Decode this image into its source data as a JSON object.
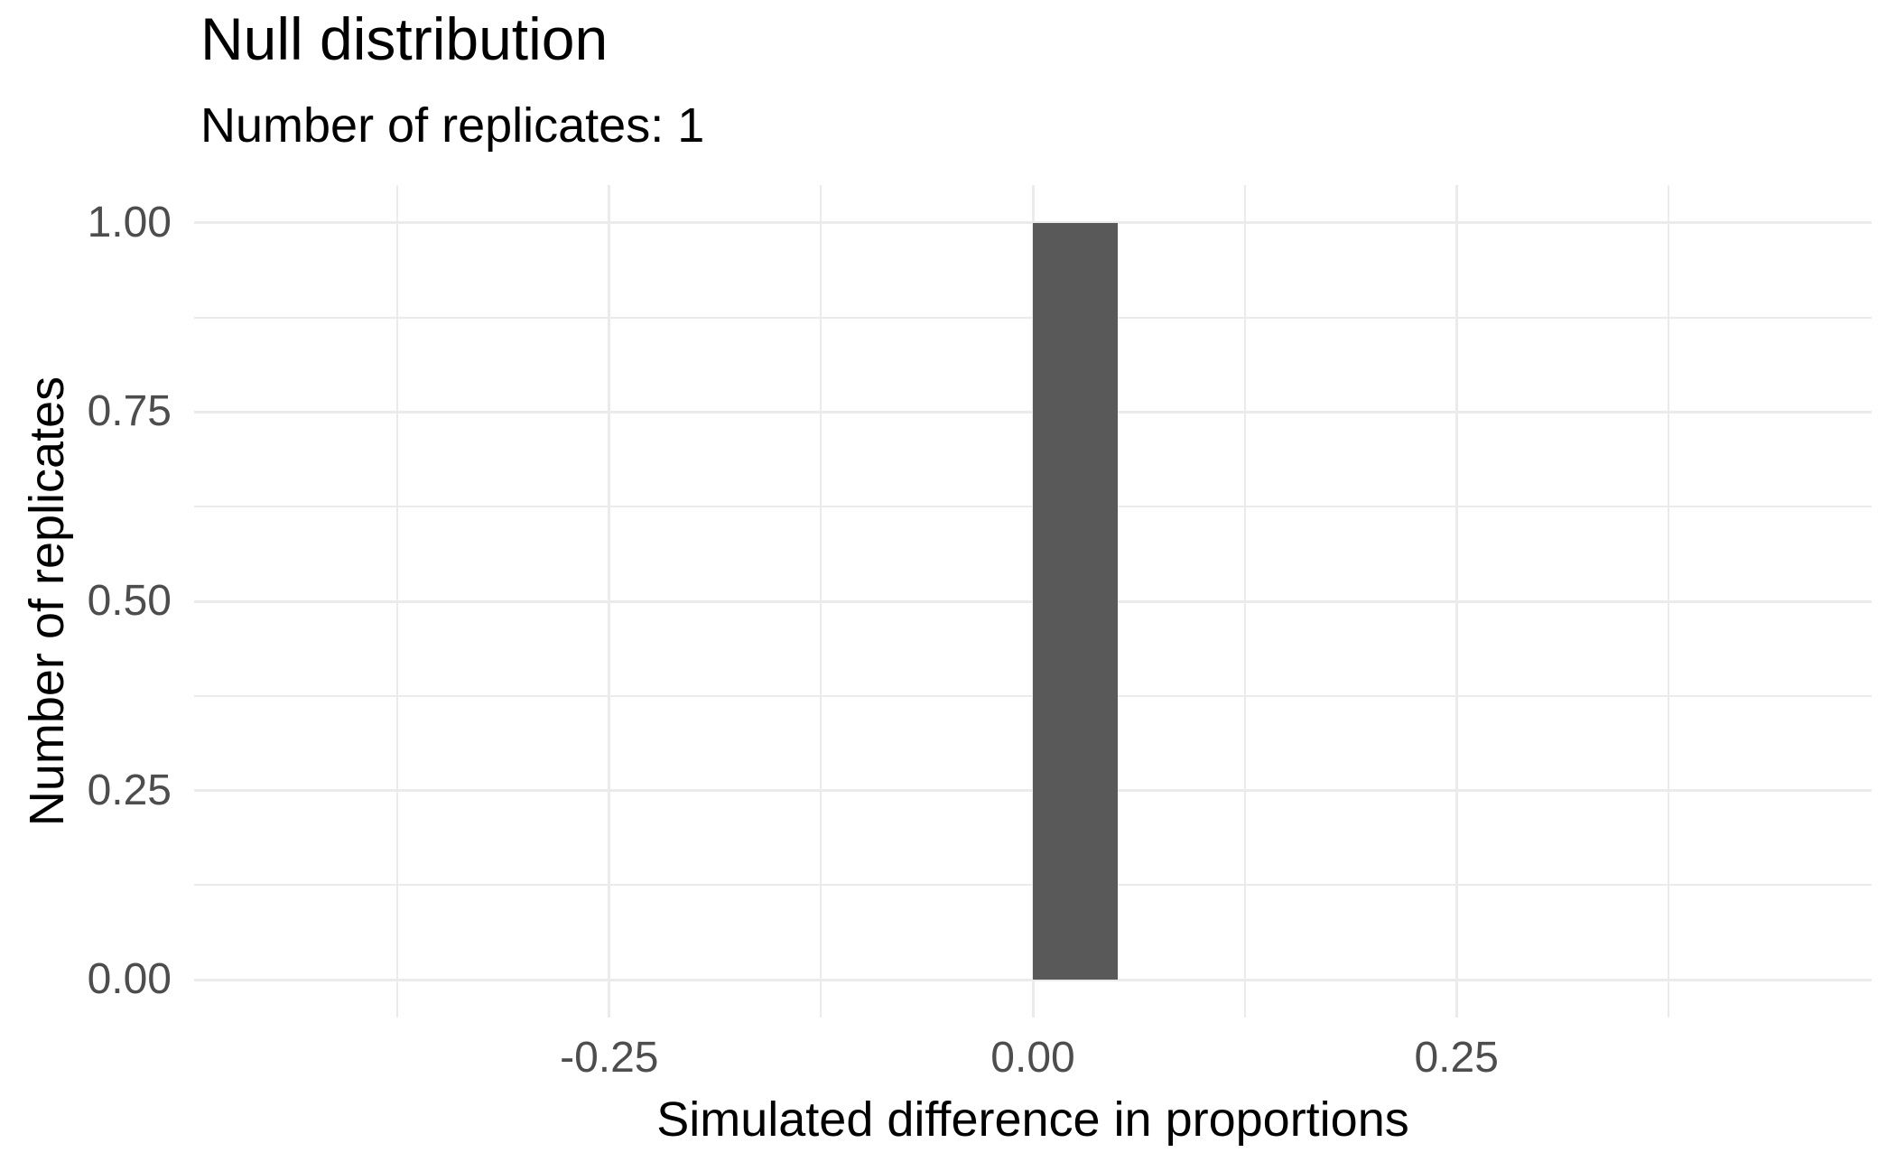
{
  "chart": {
    "title": "Null distribution",
    "subtitle": "Number of replicates: 1"
  },
  "chart_data": {
    "type": "bar",
    "title": "Null distribution",
    "subtitle": "Number of replicates: 1",
    "xlabel": "Simulated difference in proportions",
    "ylabel": "Number of replicates",
    "bars": [
      {
        "x_start": 0.0,
        "x_end": 0.05,
        "count": 1
      }
    ],
    "x_ticks": [
      -0.25,
      0,
      0.25
    ],
    "x_tick_labels": [
      "-0.25",
      "0.00",
      "0.25"
    ],
    "y_ticks": [
      0,
      0.25,
      0.5,
      0.75,
      1
    ],
    "y_tick_labels": [
      "0.00",
      "0.25",
      "0.50",
      "0.75",
      "1.00"
    ],
    "x_minor_gridlines": [
      -0.375,
      -0.125,
      0.125,
      0.375
    ],
    "y_minor_gridlines": [
      0.125,
      0.375,
      0.625,
      0.875
    ],
    "xlim": [
      -0.495,
      0.495
    ],
    "ylim": [
      -0.05,
      1.05
    ],
    "grid": true,
    "legend": false,
    "colors": {
      "bar": "#595959",
      "grid": "#EBEBEB",
      "tick_label": "#4D4D4D",
      "title": "#000000",
      "background": "#FFFFFF"
    }
  }
}
